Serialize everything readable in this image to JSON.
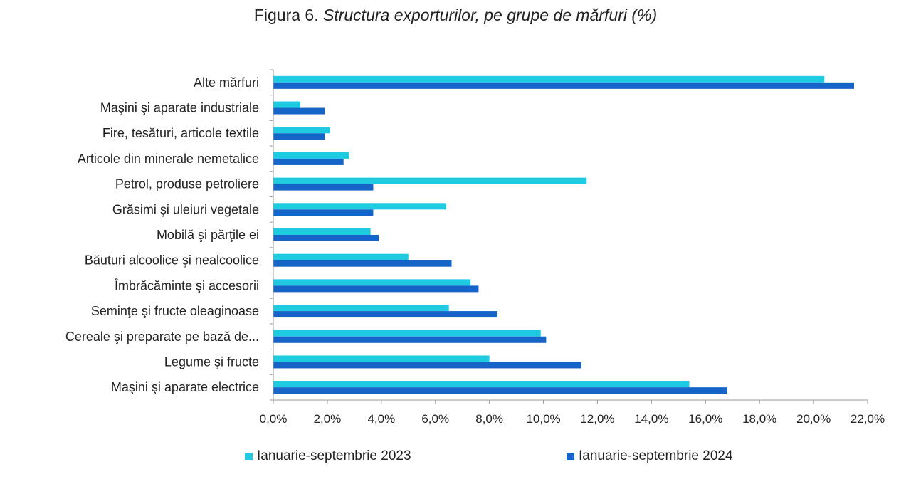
{
  "title_prefix": "Figura 6. ",
  "title_italic": "Structura exporturilor, pe grupe de mărfuri (%)",
  "chart_data": {
    "type": "bar",
    "orientation": "horizontal",
    "categories": [
      "Alte mărfuri",
      "Maşini şi aparate industriale",
      "Fire, tesături, articole textile",
      "Articole din minerale nemetalice",
      "Petrol, produse petroliere",
      "Grăsimi şi uleiuri vegetale",
      "Mobilă şi părţile ei",
      "Băuturi alcoolice şi nealcoolice",
      "Îmbrăcăminte şi accesorii",
      "Seminţe şi fructe oleaginoase",
      "Cereale şi preparate pe bază de...",
      "Legume şi fructe",
      "Maşini şi aparate electrice"
    ],
    "series": [
      {
        "name": "Ianuarie-septembrie 2023",
        "color": "#1ecbe1",
        "values": [
          20.4,
          1.0,
          2.1,
          2.8,
          11.6,
          6.4,
          3.6,
          5.0,
          7.3,
          6.5,
          9.9,
          8.0,
          15.4
        ]
      },
      {
        "name": "Ianuarie-septembrie 2024",
        "color": "#1565c8",
        "values": [
          21.5,
          1.9,
          1.9,
          2.6,
          3.7,
          3.7,
          3.9,
          6.6,
          7.6,
          8.3,
          10.1,
          11.4,
          16.8
        ]
      }
    ],
    "xlim": [
      0,
      22
    ],
    "xticks": [
      "0,0%",
      "2,0%",
      "4,0%",
      "6,0%",
      "8,0%",
      "10,0%",
      "12,0%",
      "14,0%",
      "16,0%",
      "18,0%",
      "20,0%",
      "22,0%"
    ],
    "xlabel": "",
    "ylabel": "",
    "legend_position": "bottom"
  }
}
